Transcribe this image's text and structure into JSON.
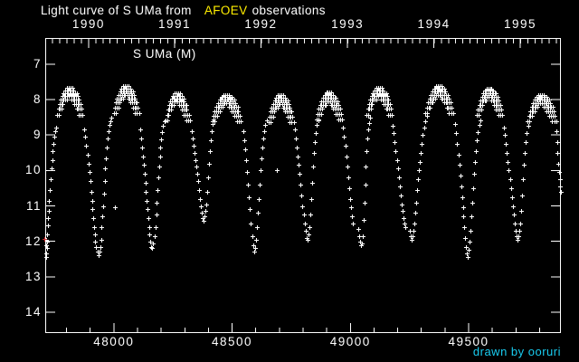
{
  "title": {
    "part1": "Light curve of S UMa from",
    "accent": "AFOEV",
    "part2": "observations",
    "accent_color": "#ffee00"
  },
  "credit": "drawn by ooruri",
  "credit_color": "#19ccf0",
  "chart_data": {
    "type": "scatter",
    "series_label": "S UMa (M)",
    "marker": "plus",
    "marker_color": "#ffffff",
    "background_color": "#000000",
    "x_axis": {
      "bottom_tick_labels": [
        "48000",
        "48500",
        "49000",
        "49500"
      ],
      "bottom_tick_values": [
        48000,
        48500,
        49000,
        49500
      ],
      "bottom_minor_step": 100,
      "top_year_ticks": [
        {
          "label": "1990",
          "jd": 47893
        },
        {
          "label": "1991",
          "jd": 48257
        },
        {
          "label": "1992",
          "jd": 48622
        },
        {
          "label": "1993",
          "jd": 48988
        },
        {
          "label": "1994",
          "jd": 49353
        },
        {
          "label": "1995",
          "jd": 49718
        }
      ],
      "top_minor_step_days": 30.437,
      "xlim": [
        47710,
        49890
      ]
    },
    "y_axis": {
      "tick_labels": [
        "7",
        "8",
        "9",
        "10",
        "11",
        "12",
        "13",
        "14"
      ],
      "tick_values": [
        7,
        8,
        9,
        10,
        11,
        12,
        13,
        14
      ],
      "ylim": [
        6.26,
        14.59
      ],
      "inverted": true
    },
    "peaks": [
      [
        47816,
        7.66,
        1.0
      ],
      [
        48054,
        7.62,
        1.0
      ],
      [
        48272,
        7.82,
        0.95
      ],
      [
        48480,
        7.86,
        1.15
      ],
      [
        48708,
        7.88,
        1.0
      ],
      [
        48912,
        7.8,
        1.0
      ],
      [
        49124,
        7.66,
        1.0
      ],
      [
        49378,
        7.62,
        1.1
      ],
      [
        49590,
        7.68,
        1.0
      ],
      [
        49812,
        7.86,
        1.15
      ]
    ],
    "peak_profile_rows": [
      [
        -14,
        10,
        7,
        0
      ],
      [
        -22,
        18,
        6,
        0.07
      ],
      [
        -28,
        26,
        6,
        0.15
      ],
      [
        -34,
        -2,
        7,
        0.24
      ],
      [
        4,
        32,
        7,
        0.24
      ],
      [
        -40,
        -16,
        6,
        0.34
      ],
      [
        6,
        38,
        6,
        0.34
      ],
      [
        -46,
        -26,
        7,
        0.46
      ],
      [
        16,
        44,
        7,
        0.46
      ],
      [
        -50,
        -36,
        7,
        0.6
      ],
      [
        26,
        50,
        7,
        0.6
      ],
      [
        -55,
        -44,
        8,
        0.76
      ],
      [
        36,
        56,
        8,
        0.76
      ]
    ],
    "points": [
      [
        47712,
        12.35
      ],
      [
        47713,
        12.1
      ],
      [
        47714,
        12.45
      ],
      [
        47715,
        11.95
      ],
      [
        47716,
        12.2
      ],
      [
        47718,
        11.8
      ],
      [
        47719,
        12.0
      ],
      [
        47721,
        11.55
      ],
      [
        47723,
        11.35
      ],
      [
        47725,
        11.15
      ],
      [
        47727,
        10.85
      ],
      [
        47730,
        10.55
      ],
      [
        47733,
        10.25
      ],
      [
        47736,
        9.95
      ],
      [
        47739,
        9.7
      ],
      [
        47742,
        9.45
      ],
      [
        47745,
        9.25
      ],
      [
        47748,
        9.05
      ],
      [
        47752,
        8.9
      ],
      [
        47756,
        8.78
      ],
      [
        47876,
        8.85
      ],
      [
        47880,
        9.05
      ],
      [
        47884,
        9.3
      ],
      [
        47888,
        9.55
      ],
      [
        47892,
        9.8
      ],
      [
        47896,
        10.05
      ],
      [
        47900,
        10.3
      ],
      [
        47904,
        10.6
      ],
      [
        47907,
        10.85
      ],
      [
        47910,
        11.1
      ],
      [
        47913,
        11.35
      ],
      [
        47916,
        11.6
      ],
      [
        47919,
        11.8
      ],
      [
        47922,
        12.0
      ],
      [
        47926,
        12.15
      ],
      [
        47930,
        12.3
      ],
      [
        47934,
        12.4
      ],
      [
        47938,
        12.3
      ],
      [
        47942,
        12.15
      ],
      [
        47946,
        11.95
      ],
      [
        47949,
        11.6
      ],
      [
        47952,
        11.3
      ],
      [
        47955,
        11.0
      ],
      [
        47958,
        10.65
      ],
      [
        47961,
        10.3
      ],
      [
        47964,
        9.95
      ],
      [
        47967,
        9.65
      ],
      [
        47970,
        9.35
      ],
      [
        47973,
        9.1
      ],
      [
        47976,
        8.9
      ],
      [
        47980,
        8.72
      ],
      [
        47985,
        8.6
      ],
      [
        47991,
        8.5
      ],
      [
        48006,
        11.05
      ],
      [
        48112,
        8.85
      ],
      [
        48116,
        9.1
      ],
      [
        48120,
        9.35
      ],
      [
        48124,
        9.6
      ],
      [
        48127,
        9.85
      ],
      [
        48130,
        10.1
      ],
      [
        48133,
        10.35
      ],
      [
        48136,
        10.6
      ],
      [
        48139,
        10.85
      ],
      [
        48142,
        11.1
      ],
      [
        48145,
        11.35
      ],
      [
        48148,
        11.6
      ],
      [
        48151,
        11.8
      ],
      [
        48155,
        12.0
      ],
      [
        48159,
        12.15
      ],
      [
        48163,
        12.2
      ],
      [
        48167,
        12.05
      ],
      [
        48171,
        11.85
      ],
      [
        48175,
        11.6
      ],
      [
        48179,
        11.25
      ],
      [
        48182,
        10.9
      ],
      [
        48185,
        10.55
      ],
      [
        48188,
        10.2
      ],
      [
        48191,
        9.9
      ],
      [
        48194,
        9.6
      ],
      [
        48197,
        9.35
      ],
      [
        48200,
        9.12
      ],
      [
        48204,
        8.92
      ],
      [
        48209,
        8.75
      ],
      [
        48215,
        8.6
      ],
      [
        48328,
        8.9
      ],
      [
        48332,
        9.1
      ],
      [
        48336,
        9.3
      ],
      [
        48340,
        9.5
      ],
      [
        48344,
        9.7
      ],
      [
        48348,
        9.9
      ],
      [
        48352,
        10.1
      ],
      [
        48356,
        10.3
      ],
      [
        48360,
        10.55
      ],
      [
        48364,
        10.8
      ],
      [
        48368,
        11.0
      ],
      [
        48372,
        11.2
      ],
      [
        48376,
        11.35
      ],
      [
        48380,
        11.42
      ],
      [
        48384,
        11.3
      ],
      [
        48388,
        11.15
      ],
      [
        48392,
        10.95
      ],
      [
        48396,
        10.6
      ],
      [
        48399,
        10.2
      ],
      [
        48402,
        9.8
      ],
      [
        48405,
        9.45
      ],
      [
        48408,
        9.15
      ],
      [
        48412,
        8.9
      ],
      [
        48416,
        8.7
      ],
      [
        48421,
        8.55
      ],
      [
        48548,
        8.9
      ],
      [
        48552,
        9.15
      ],
      [
        48556,
        9.4
      ],
      [
        48560,
        9.7
      ],
      [
        48564,
        10.05
      ],
      [
        48568,
        10.4
      ],
      [
        48572,
        10.75
      ],
      [
        48576,
        11.1
      ],
      [
        48580,
        11.5
      ],
      [
        48584,
        11.85
      ],
      [
        48588,
        12.1
      ],
      [
        48592,
        12.3
      ],
      [
        48596,
        12.2
      ],
      [
        48600,
        11.95
      ],
      [
        48604,
        11.6
      ],
      [
        48608,
        11.2
      ],
      [
        48612,
        10.8
      ],
      [
        48616,
        10.4
      ],
      [
        48620,
        10.0
      ],
      [
        48624,
        9.65
      ],
      [
        48628,
        9.35
      ],
      [
        48632,
        9.1
      ],
      [
        48636,
        8.9
      ],
      [
        48641,
        8.72
      ],
      [
        48647,
        8.58
      ],
      [
        48690,
        10.0
      ],
      [
        48766,
        8.85
      ],
      [
        48770,
        9.1
      ],
      [
        48774,
        9.35
      ],
      [
        48778,
        9.6
      ],
      [
        48782,
        9.85
      ],
      [
        48786,
        10.1
      ],
      [
        48790,
        10.4
      ],
      [
        48794,
        10.7
      ],
      [
        48798,
        11.0
      ],
      [
        48802,
        11.25
      ],
      [
        48806,
        11.5
      ],
      [
        48810,
        11.7
      ],
      [
        48814,
        11.9
      ],
      [
        48818,
        11.95
      ],
      [
        48822,
        11.8
      ],
      [
        48826,
        11.6
      ],
      [
        48830,
        11.25
      ],
      [
        48834,
        10.8
      ],
      [
        48838,
        10.35
      ],
      [
        48842,
        9.9
      ],
      [
        48846,
        9.5
      ],
      [
        48850,
        9.2
      ],
      [
        48854,
        8.95
      ],
      [
        48859,
        8.72
      ],
      [
        48865,
        8.58
      ],
      [
        48970,
        8.8
      ],
      [
        48974,
        9.05
      ],
      [
        48978,
        9.3
      ],
      [
        48982,
        9.6
      ],
      [
        48986,
        9.9
      ],
      [
        48990,
        10.2
      ],
      [
        48994,
        10.5
      ],
      [
        48998,
        10.8
      ],
      [
        49002,
        11.05
      ],
      [
        49006,
        11.3
      ],
      [
        49010,
        11.5
      ],
      [
        49032,
        11.65
      ],
      [
        49036,
        11.85
      ],
      [
        49040,
        12.0
      ],
      [
        49044,
        12.1
      ],
      [
        49048,
        12.05
      ],
      [
        49052,
        11.85
      ],
      [
        49056,
        11.4
      ],
      [
        49059,
        10.9
      ],
      [
        49062,
        10.4
      ],
      [
        49065,
        9.9
      ],
      [
        49068,
        9.45
      ],
      [
        49071,
        9.1
      ],
      [
        49074,
        8.85
      ],
      [
        49078,
        8.65
      ],
      [
        49083,
        8.5
      ],
      [
        49180,
        8.75
      ],
      [
        49184,
        8.95
      ],
      [
        49188,
        9.2
      ],
      [
        49192,
        9.45
      ],
      [
        49196,
        9.7
      ],
      [
        49200,
        9.95
      ],
      [
        49204,
        10.2
      ],
      [
        49208,
        10.45
      ],
      [
        49212,
        10.7
      ],
      [
        49216,
        10.95
      ],
      [
        49220,
        11.15
      ],
      [
        49224,
        11.35
      ],
      [
        49228,
        11.5
      ],
      [
        49232,
        11.6
      ],
      [
        49250,
        11.7
      ],
      [
        49254,
        11.85
      ],
      [
        49258,
        11.95
      ],
      [
        49262,
        11.85
      ],
      [
        49266,
        11.7
      ],
      [
        49270,
        11.5
      ],
      [
        49274,
        11.2
      ],
      [
        49278,
        10.9
      ],
      [
        49282,
        10.55
      ],
      [
        49286,
        10.25
      ],
      [
        49290,
        10.0
      ],
      [
        49294,
        9.75
      ],
      [
        49298,
        9.5
      ],
      [
        49302,
        9.25
      ],
      [
        49306,
        9.0
      ],
      [
        49311,
        8.8
      ],
      [
        49317,
        8.6
      ],
      [
        49324,
        8.45
      ],
      [
        49444,
        8.7
      ],
      [
        49448,
        8.95
      ],
      [
        49452,
        9.25
      ],
      [
        49456,
        9.55
      ],
      [
        49460,
        9.85
      ],
      [
        49464,
        10.15
      ],
      [
        49468,
        10.45
      ],
      [
        49472,
        10.75
      ],
      [
        49476,
        11.05
      ],
      [
        49478,
        11.3
      ],
      [
        49480,
        11.6
      ],
      [
        49484,
        11.9
      ],
      [
        49488,
        12.15
      ],
      [
        49492,
        12.35
      ],
      [
        49496,
        12.45
      ],
      [
        49500,
        12.25
      ],
      [
        49504,
        12.0
      ],
      [
        49508,
        11.7
      ],
      [
        49512,
        11.3
      ],
      [
        49516,
        10.9
      ],
      [
        49520,
        10.5
      ],
      [
        49524,
        10.1
      ],
      [
        49528,
        9.75
      ],
      [
        49532,
        9.45
      ],
      [
        49536,
        9.15
      ],
      [
        49540,
        8.92
      ],
      [
        49545,
        8.72
      ],
      [
        49551,
        8.58
      ],
      [
        49650,
        8.8
      ],
      [
        49654,
        9.0
      ],
      [
        49658,
        9.25
      ],
      [
        49662,
        9.5
      ],
      [
        49666,
        9.75
      ],
      [
        49670,
        10.0
      ],
      [
        49674,
        10.25
      ],
      [
        49678,
        10.5
      ],
      [
        49682,
        10.75
      ],
      [
        49686,
        11.0
      ],
      [
        49690,
        11.25
      ],
      [
        49694,
        11.5
      ],
      [
        49698,
        11.7
      ],
      [
        49702,
        11.85
      ],
      [
        49706,
        11.95
      ],
      [
        49710,
        11.85
      ],
      [
        49714,
        11.7
      ],
      [
        49718,
        11.5
      ],
      [
        49722,
        11.15
      ],
      [
        49726,
        10.7
      ],
      [
        49730,
        10.25
      ],
      [
        49734,
        9.85
      ],
      [
        49738,
        9.5
      ],
      [
        49742,
        9.2
      ],
      [
        49746,
        8.95
      ],
      [
        49751,
        8.75
      ],
      [
        49757,
        8.6
      ],
      [
        49870,
        8.9
      ],
      [
        49873,
        9.2
      ],
      [
        49876,
        9.5
      ],
      [
        49879,
        9.8
      ],
      [
        49882,
        10.05
      ],
      [
        49885,
        10.25
      ],
      [
        49888,
        10.45
      ],
      [
        49889,
        10.6
      ]
    ],
    "special_points": [
      {
        "jd": 47708,
        "mag": 11.92,
        "color": "#cc3333",
        "shape": "cross"
      }
    ]
  }
}
